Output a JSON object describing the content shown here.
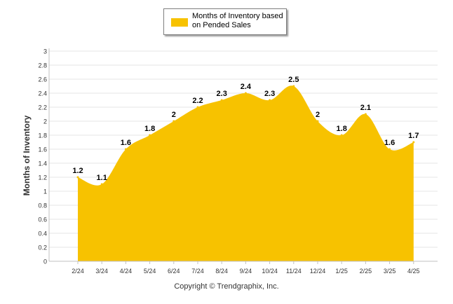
{
  "chart_data": {
    "type": "area",
    "title": "",
    "xlabel": "",
    "ylabel": "Months of Inventory",
    "ylim": [
      0,
      3
    ],
    "y_tick_step": 0.2,
    "grid": true,
    "legend_position": "top-center",
    "categories": [
      "2/24",
      "3/24",
      "4/24",
      "5/24",
      "6/24",
      "7/24",
      "8/24",
      "9/24",
      "10/24",
      "11/24",
      "12/24",
      "1/25",
      "2/25",
      "3/25",
      "4/25"
    ],
    "series": [
      {
        "name": "Months of Inventory based on Pended Sales",
        "color": "#f7c200",
        "values": [
          1.2,
          1.1,
          1.6,
          1.8,
          2,
          2.2,
          2.3,
          2.4,
          2.3,
          2.5,
          2,
          1.8,
          2.1,
          1.6,
          1.7
        ]
      }
    ]
  },
  "footer": {
    "copyright": "Copyright © Trendgraphix, Inc."
  }
}
